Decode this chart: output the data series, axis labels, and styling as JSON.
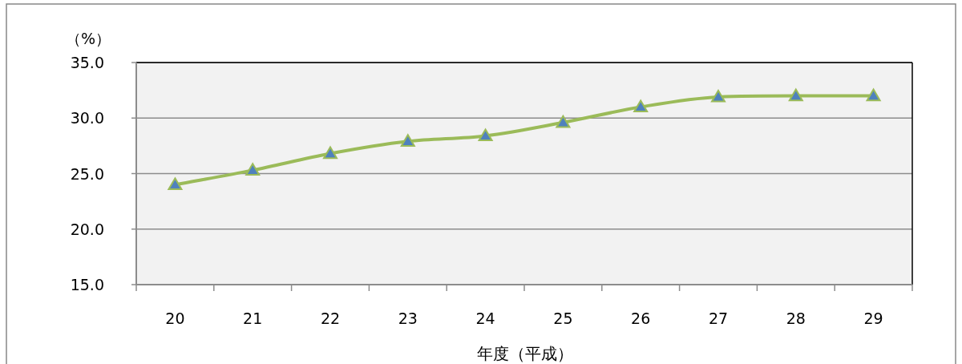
{
  "chart_data": {
    "type": "line",
    "ylabel": "（%）",
    "xlabel": "年度（平成）",
    "categories": [
      "20",
      "21",
      "22",
      "23",
      "24",
      "25",
      "26",
      "27",
      "28",
      "29"
    ],
    "series": [
      {
        "color": "#9bbb59",
        "values": [
          24.0,
          25.3,
          26.8,
          27.9,
          28.4,
          29.6,
          31.0,
          31.9,
          32.0,
          32.0
        ]
      }
    ],
    "ylim": [
      15,
      35
    ],
    "yticks": [
      {
        "value": 15,
        "label": "15.0"
      },
      {
        "value": 20,
        "label": "20.0"
      },
      {
        "value": 25,
        "label": "25.0"
      },
      {
        "value": 30,
        "label": "30.0"
      },
      {
        "value": 35,
        "label": "35.0"
      }
    ],
    "grid": "y",
    "marker": "triangle"
  }
}
